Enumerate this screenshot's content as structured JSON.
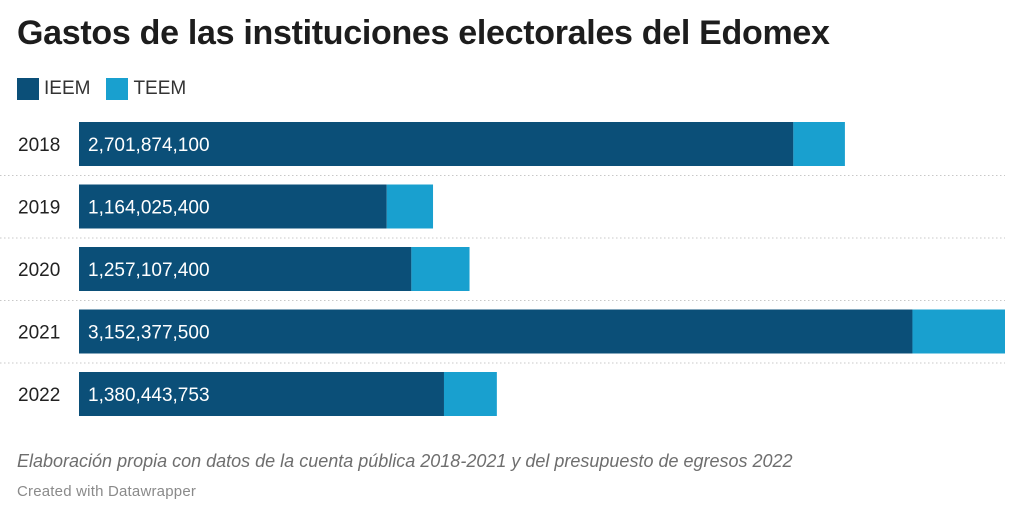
{
  "title": "Gastos de las instituciones electorales del Edomex",
  "legend": [
    {
      "name": "IEEM",
      "color": "#0b4f78"
    },
    {
      "name": "TEEM",
      "color": "#19a0cf"
    }
  ],
  "chart_data": {
    "type": "bar",
    "orientation": "horizontal",
    "stacked": true,
    "title": "Gastos de las instituciones electorales del Edomex",
    "categories": [
      "2018",
      "2019",
      "2020",
      "2021",
      "2022"
    ],
    "series": [
      {
        "name": "IEEM",
        "color": "#0b4f78",
        "values": [
          2701874100,
          1164025400,
          1257107400,
          3152377500,
          1380443753
        ]
      },
      {
        "name": "TEEM",
        "color": "#19a0cf",
        "values": [
          195000000,
          175000000,
          220000000,
          350000000,
          200000000
        ]
      }
    ],
    "labels": [
      "2,701,874,100",
      "1,164,025,400",
      "1,257,107,400",
      "3,152,377,500",
      "1,380,443,753"
    ],
    "xlim": [
      0,
      3502377500
    ],
    "xlabel": "",
    "ylabel": ""
  },
  "footer": {
    "note": "Elaboración propia con datos de la cuenta pública 2018-2021 y del presupuesto de egresos 2022",
    "credit": "Created with Datawrapper"
  }
}
